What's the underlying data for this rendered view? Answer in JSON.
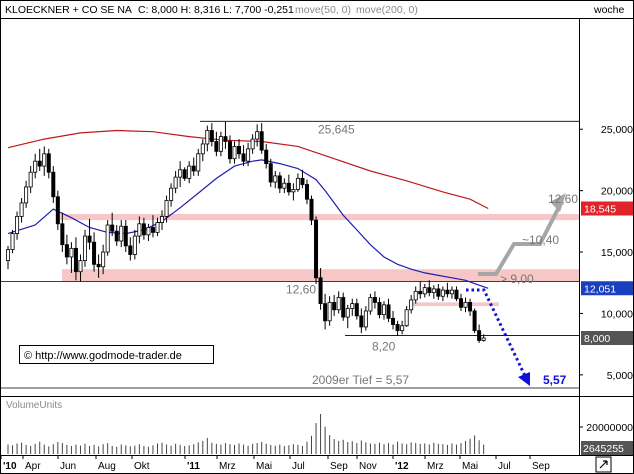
{
  "header": {
    "instrument": "KLOECKNER + CO SE NA",
    "quote": "C: 8,000  H: 8,316  L: 7,700  -0,251",
    "ma_legend_1": "move(50, 0)",
    "ma_legend_2": "move(200, 0)",
    "interval": "woche"
  },
  "copyright": "© http://www.godmode-trader.de",
  "volume_title": "VolumeUnits",
  "colors": {
    "candle": "#000000",
    "ma50": "#1f1fb0",
    "ma200": "#c01818",
    "zone": "#f7c6c6",
    "forecast_gray": "#a6a6a6",
    "forecast_blue": "#1010d8",
    "last_price_box": "#555555",
    "ma200_box": "#e0242a",
    "ma50_box": "#1a3fbf"
  },
  "chart_data": {
    "type": "candlestick",
    "title": "KLOECKNER + CO SE NA",
    "interval": "woche",
    "x_tick_labels": [
      "'10",
      "Apr",
      "Jun",
      "Aug",
      "Okt",
      "'11",
      "Mrz",
      "Mai",
      "Jul",
      "Sep",
      "Nov",
      "'12",
      "Mrz",
      "Mai",
      "Jul",
      "Sep"
    ],
    "y_ticks": [
      "25,000",
      "20,000",
      "15,000",
      "10,000",
      "5,000"
    ],
    "ylim": [
      3.5,
      26.5
    ],
    "price_labels": [
      {
        "label": "18,545",
        "value": 18.545,
        "series": "move(200, 0)"
      },
      {
        "label": "12,051",
        "value": 12.051,
        "series": "move(50, 0)"
      },
      {
        "label": "8,000",
        "value": 8.0,
        "series": "close"
      }
    ],
    "levels": [
      {
        "label": "25,645",
        "value": 25.645
      },
      {
        "label": "12,60",
        "value": 12.6
      },
      {
        "label": "8,20",
        "value": 8.2
      },
      {
        "label": "2009er Tief  =  5,57",
        "value": 5.57
      }
    ],
    "zones": [
      [
        17.6,
        18.1
      ],
      [
        12.6,
        13.6
      ],
      [
        10.6,
        10.9
      ]
    ],
    "forecast_labels": [
      {
        "label": "> 9,00",
        "value": 9.0
      },
      {
        "label": "~10,40",
        "value": 10.4
      },
      {
        "label": "12,60",
        "value": 12.6
      },
      {
        "label": "5,57",
        "value": 5.57
      }
    ],
    "candles": [
      [
        14.3,
        15.5,
        13.6,
        15.2
      ],
      [
        15.2,
        16.8,
        14.9,
        16.5
      ],
      [
        16.5,
        18.3,
        16.0,
        17.9
      ],
      [
        17.9,
        19.4,
        17.4,
        19.0
      ],
      [
        19.0,
        20.8,
        18.6,
        20.3
      ],
      [
        20.3,
        22.0,
        19.8,
        21.5
      ],
      [
        21.5,
        23.0,
        21.0,
        22.4
      ],
      [
        22.4,
        23.4,
        21.6,
        22.0
      ],
      [
        22.0,
        23.6,
        21.2,
        23.0
      ],
      [
        23.0,
        23.4,
        21.0,
        21.5
      ],
      [
        21.5,
        22.0,
        19.0,
        19.5
      ],
      [
        19.5,
        20.0,
        16.8,
        17.3
      ],
      [
        17.3,
        18.2,
        15.0,
        15.6
      ],
      [
        15.6,
        16.4,
        14.0,
        14.6
      ],
      [
        14.6,
        15.8,
        13.3,
        15.3
      ],
      [
        15.3,
        16.2,
        12.7,
        13.4
      ],
      [
        13.4,
        14.8,
        12.6,
        14.3
      ],
      [
        14.3,
        16.8,
        13.8,
        16.3
      ],
      [
        16.3,
        17.7,
        15.2,
        15.8
      ],
      [
        15.8,
        16.6,
        13.4,
        14.0
      ],
      [
        14.0,
        14.8,
        12.9,
        13.8
      ],
      [
        13.8,
        15.6,
        13.2,
        15.0
      ],
      [
        15.0,
        17.6,
        14.7,
        17.2
      ],
      [
        17.2,
        18.2,
        16.3,
        16.7
      ],
      [
        16.7,
        17.2,
        15.5,
        15.9
      ],
      [
        15.9,
        17.6,
        15.4,
        17.1
      ],
      [
        17.1,
        17.6,
        15.0,
        15.5
      ],
      [
        15.5,
        16.2,
        14.3,
        14.8
      ],
      [
        14.8,
        16.8,
        14.4,
        16.3
      ],
      [
        16.3,
        17.9,
        15.7,
        17.3
      ],
      [
        17.3,
        17.8,
        16.0,
        16.4
      ],
      [
        16.4,
        17.3,
        15.9,
        17.0
      ],
      [
        17.0,
        18.0,
        16.2,
        16.6
      ],
      [
        16.6,
        17.8,
        16.3,
        17.4
      ],
      [
        17.4,
        18.4,
        16.8,
        17.9
      ],
      [
        17.9,
        19.6,
        17.4,
        19.2
      ],
      [
        19.2,
        20.6,
        18.7,
        20.2
      ],
      [
        20.2,
        21.6,
        19.8,
        21.1
      ],
      [
        21.1,
        22.4,
        20.3,
        21.7
      ],
      [
        21.7,
        21.9,
        20.8,
        21.0
      ],
      [
        21.0,
        22.4,
        20.6,
        22.0
      ],
      [
        22.0,
        22.7,
        21.2,
        21.6
      ],
      [
        21.6,
        23.4,
        21.2,
        23.0
      ],
      [
        23.0,
        24.2,
        22.4,
        23.8
      ],
      [
        23.8,
        25.3,
        23.2,
        24.9
      ],
      [
        24.9,
        25.5,
        23.6,
        24.0
      ],
      [
        24.0,
        24.8,
        22.8,
        23.2
      ],
      [
        23.2,
        24.8,
        22.8,
        24.4
      ],
      [
        24.4,
        25.6,
        23.4,
        24.0
      ],
      [
        24.0,
        24.5,
        22.2,
        22.6
      ],
      [
        22.6,
        24.0,
        22.2,
        23.6
      ],
      [
        23.6,
        24.2,
        22.6,
        23.0
      ],
      [
        23.0,
        23.7,
        22.0,
        22.4
      ],
      [
        22.4,
        23.9,
        22.0,
        23.4
      ],
      [
        23.4,
        24.6,
        23.0,
        24.2
      ],
      [
        24.2,
        25.4,
        23.6,
        24.8
      ],
      [
        24.8,
        25.5,
        23.0,
        23.3
      ],
      [
        23.3,
        23.8,
        21.8,
        22.2
      ],
      [
        22.2,
        22.6,
        20.3,
        20.7
      ],
      [
        20.7,
        21.6,
        20.2,
        21.2
      ],
      [
        21.2,
        21.5,
        19.8,
        20.2
      ],
      [
        20.2,
        21.0,
        19.8,
        20.6
      ],
      [
        20.6,
        21.3,
        19.6,
        19.9
      ],
      [
        19.9,
        20.6,
        19.2,
        20.1
      ],
      [
        20.1,
        21.4,
        19.9,
        21.0
      ],
      [
        21.0,
        21.7,
        20.2,
        20.5
      ],
      [
        20.5,
        20.9,
        18.9,
        19.3
      ],
      [
        19.3,
        19.6,
        17.2,
        17.6
      ],
      [
        17.6,
        17.9,
        12.4,
        12.9
      ],
      [
        12.9,
        13.7,
        10.3,
        10.8
      ],
      [
        10.8,
        11.6,
        8.7,
        9.4
      ],
      [
        9.4,
        11.4,
        9.0,
        10.9
      ],
      [
        10.9,
        11.5,
        9.8,
        10.3
      ],
      [
        10.3,
        11.8,
        10.0,
        11.3
      ],
      [
        11.3,
        11.7,
        9.4,
        9.7
      ],
      [
        9.7,
        10.7,
        8.8,
        10.4
      ],
      [
        10.4,
        11.2,
        9.8,
        10.8
      ],
      [
        10.8,
        11.2,
        9.5,
        9.8
      ],
      [
        9.8,
        10.4,
        8.4,
        8.9
      ],
      [
        8.9,
        10.6,
        8.6,
        10.2
      ],
      [
        10.2,
        11.6,
        9.9,
        11.3
      ],
      [
        11.3,
        11.8,
        10.4,
        10.9
      ],
      [
        10.9,
        11.3,
        9.6,
        9.9
      ],
      [
        9.9,
        11.0,
        9.5,
        10.7
      ],
      [
        10.7,
        11.2,
        9.3,
        9.6
      ],
      [
        9.6,
        10.2,
        8.7,
        9.1
      ],
      [
        9.1,
        9.4,
        8.2,
        8.6
      ],
      [
        8.6,
        9.4,
        8.3,
        9.0
      ],
      [
        9.0,
        10.6,
        8.9,
        10.3
      ],
      [
        10.3,
        11.5,
        10.0,
        11.1
      ],
      [
        11.1,
        12.2,
        10.8,
        11.8
      ],
      [
        11.8,
        12.6,
        11.2,
        11.6
      ],
      [
        11.6,
        12.4,
        11.3,
        12.1
      ],
      [
        12.1,
        12.7,
        11.4,
        11.7
      ],
      [
        11.7,
        12.3,
        11.2,
        12.0
      ],
      [
        12.0,
        12.4,
        11.1,
        11.4
      ],
      [
        11.4,
        12.2,
        11.0,
        11.9
      ],
      [
        11.9,
        12.5,
        11.3,
        11.6
      ],
      [
        11.6,
        12.2,
        11.2,
        11.9
      ],
      [
        11.9,
        12.2,
        11.0,
        11.2
      ],
      [
        11.2,
        11.6,
        10.2,
        10.5
      ],
      [
        10.5,
        11.3,
        10.1,
        10.9
      ],
      [
        10.9,
        11.2,
        9.8,
        10.2
      ],
      [
        10.2,
        10.4,
        8.4,
        8.6
      ],
      [
        8.6,
        9.1,
        7.6,
        7.8
      ],
      [
        7.8,
        8.3,
        7.7,
        8.0
      ]
    ],
    "ma50": [
      [
        0,
        16.5
      ],
      [
        6,
        17.2
      ],
      [
        10,
        18.5
      ],
      [
        14,
        17.8
      ],
      [
        18,
        17.0
      ],
      [
        22,
        16.6
      ],
      [
        26,
        16.5
      ],
      [
        30,
        16.8
      ],
      [
        34,
        17.5
      ],
      [
        38,
        18.6
      ],
      [
        42,
        19.8
      ],
      [
        46,
        21.0
      ],
      [
        50,
        22.0
      ],
      [
        54,
        22.4
      ],
      [
        56,
        22.5
      ],
      [
        60,
        22.2
      ],
      [
        64,
        21.8
      ],
      [
        68,
        20.9
      ],
      [
        70,
        20.0
      ],
      [
        72,
        19.0
      ],
      [
        74,
        18.0
      ],
      [
        77,
        16.8
      ],
      [
        80,
        15.6
      ],
      [
        83,
        14.6
      ],
      [
        86,
        14.0
      ],
      [
        89,
        13.6
      ],
      [
        92,
        13.3
      ],
      [
        95,
        13.1
      ],
      [
        98,
        12.9
      ],
      [
        101,
        12.7
      ],
      [
        104,
        12.3
      ],
      [
        106,
        12.05
      ]
    ],
    "ma200": [
      [
        0,
        23.5
      ],
      [
        8,
        24.2
      ],
      [
        16,
        24.7
      ],
      [
        24,
        24.9
      ],
      [
        32,
        24.8
      ],
      [
        40,
        24.4
      ],
      [
        48,
        24.1
      ],
      [
        56,
        24.0
      ],
      [
        64,
        23.6
      ],
      [
        72,
        22.6
      ],
      [
        80,
        21.6
      ],
      [
        88,
        20.8
      ],
      [
        96,
        19.9
      ],
      [
        102,
        19.3
      ],
      [
        106,
        18.545
      ]
    ],
    "volume": {
      "title": "VolumeUnits",
      "y_ticks": [
        "20000000"
      ],
      "last_label": "2645255",
      "values": [
        2.6,
        2.4,
        2.9,
        3.1,
        2.5,
        2.2,
        2.8,
        3.4,
        2.6,
        2.1,
        2.7,
        3.3,
        3.0,
        2.5,
        2.2,
        2.6,
        2.3,
        2.8,
        2.2,
        2.5,
        2.1,
        2.7,
        3.0,
        2.2,
        2.0,
        2.6,
        2.4,
        2.1,
        2.3,
        2.7,
        2.2,
        2.0,
        2.4,
        2.9,
        3.1,
        2.6,
        2.3,
        2.8,
        2.5,
        2.2,
        2.4,
        2.7,
        3.2,
        3.6,
        4.4,
        3.1,
        2.8,
        2.6,
        3.0,
        2.7,
        2.5,
        2.9,
        2.6,
        2.3,
        2.8,
        3.0,
        3.3,
        2.8,
        2.5,
        2.3,
        2.6,
        2.2,
        2.4,
        2.7,
        2.5,
        2.2,
        3.4,
        5.0,
        8.5,
        11.0,
        7.5,
        5.2,
        4.1,
        3.6,
        3.9,
        3.3,
        3.5,
        3.0,
        3.7,
        3.2,
        2.9,
        2.8,
        3.1,
        2.7,
        3.0,
        2.6,
        3.4,
        2.9,
        2.7,
        3.2,
        3.0,
        2.8,
        2.9,
        2.6,
        3.1,
        2.8,
        2.7,
        2.5,
        2.9,
        2.6,
        3.0,
        3.6,
        4.2,
        5.1,
        3.8,
        2.6
      ]
    }
  }
}
